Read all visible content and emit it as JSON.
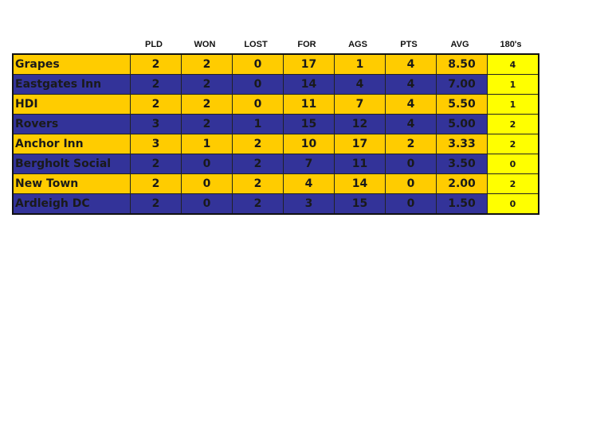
{
  "colors": {
    "odd_row": "#FFCC00",
    "even_row": "#333399",
    "highlight_col": "#FFFF00"
  },
  "headers": [
    "PLD",
    "WON",
    "LOST",
    "FOR",
    "AGS",
    "PTS",
    "AVG",
    "180's"
  ],
  "rows": [
    [
      "Grapes",
      "2",
      "2",
      "0",
      "17",
      "1",
      "4",
      "8.50",
      "4"
    ],
    [
      "Eastgates Inn",
      "2",
      "2",
      "0",
      "14",
      "4",
      "4",
      "7.00",
      "1"
    ],
    [
      "HDI",
      "2",
      "2",
      "0",
      "11",
      "7",
      "4",
      "5.50",
      "1"
    ],
    [
      "Rovers",
      "3",
      "2",
      "1",
      "15",
      "12",
      "4",
      "5.00",
      "2"
    ],
    [
      "Anchor Inn",
      "3",
      "1",
      "2",
      "10",
      "17",
      "2",
      "3.33",
      "2"
    ],
    [
      "Bergholt Social",
      "2",
      "0",
      "2",
      "7",
      "11",
      "0",
      "3.50",
      "0"
    ],
    [
      "New Town",
      "2",
      "0",
      "2",
      "4",
      "14",
      "0",
      "2.00",
      "2"
    ],
    [
      "Ardleigh DC",
      "2",
      "0",
      "2",
      "3",
      "15",
      "0",
      "1.50",
      "0"
    ]
  ]
}
